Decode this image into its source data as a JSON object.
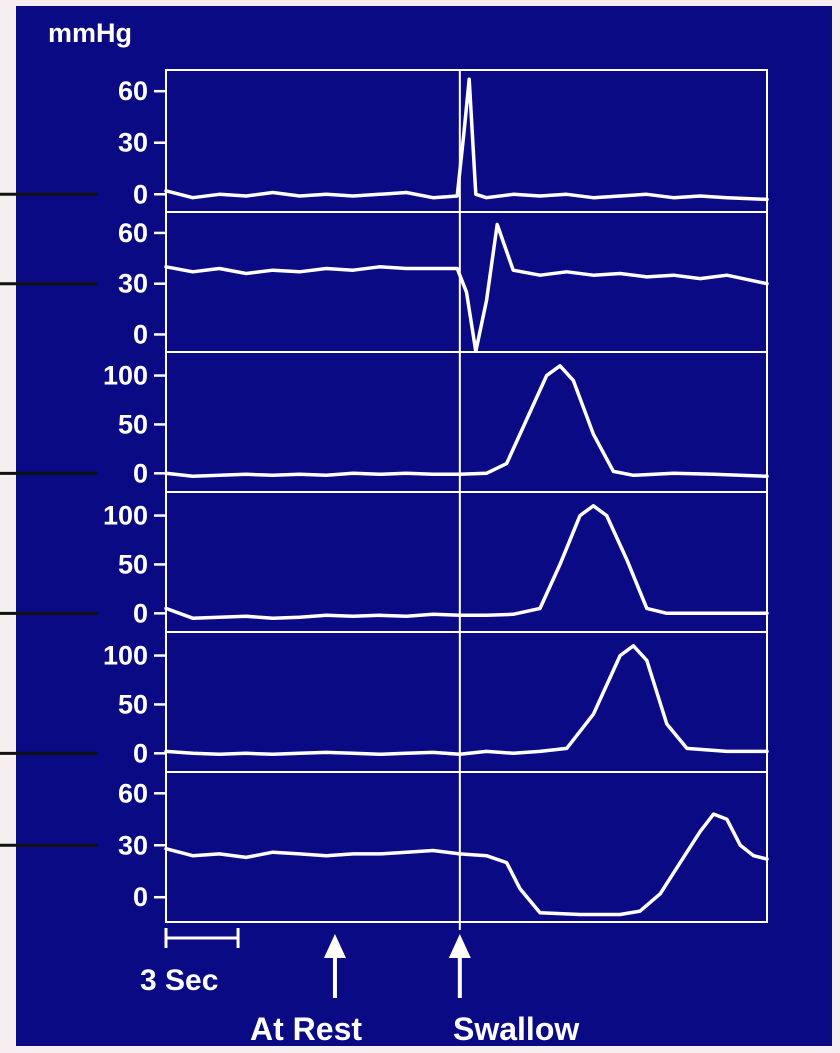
{
  "colors": {
    "background": "#0a0a84",
    "trace": "#ffffff",
    "outer": "#f6eef0",
    "pointer": "#111111"
  },
  "labels": {
    "unit": "mmHg",
    "scale_bar": "3 Sec",
    "at_rest": "At Rest",
    "swallow": "Swallow"
  },
  "chart_data": {
    "type": "line",
    "title": "",
    "xlabel": "",
    "ylabel": "mmHg",
    "x_unit": "sec",
    "xlim": [
      0,
      45
    ],
    "scale_bar_seconds": 3,
    "markers": [
      {
        "label": "At Rest",
        "x": 12.5
      },
      {
        "label": "Swallow",
        "x": 22
      }
    ],
    "grid": false,
    "panels": [
      {
        "yticks": [
          0,
          30,
          60
        ],
        "ylim": [
          -8,
          70
        ],
        "x": [
          0,
          2,
          4,
          6,
          8,
          10,
          12,
          14,
          16,
          18,
          20,
          21.8,
          22.3,
          22.7,
          23.2,
          24,
          26,
          28,
          30,
          32,
          34,
          36,
          38,
          40,
          42,
          45
        ],
        "y": [
          2,
          -2,
          0,
          -1,
          1,
          -1,
          0,
          -1,
          0,
          1,
          -2,
          -1,
          35,
          67,
          0,
          -2,
          0,
          -1,
          0,
          -2,
          -1,
          0,
          -2,
          -1,
          -2,
          -3
        ]
      },
      {
        "yticks": [
          0,
          30,
          60
        ],
        "ylim": [
          -8,
          70
        ],
        "x": [
          0,
          2,
          4,
          6,
          8,
          10,
          12,
          14,
          16,
          18,
          20,
          21.8,
          22.5,
          23.2,
          24,
          24.8,
          26,
          28,
          30,
          32,
          34,
          36,
          38,
          40,
          42,
          45
        ],
        "y": [
          40,
          37,
          39,
          36,
          38,
          37,
          39,
          38,
          40,
          39,
          39,
          39,
          25,
          -10,
          20,
          65,
          38,
          35,
          37,
          35,
          36,
          34,
          35,
          33,
          35,
          30
        ]
      },
      {
        "yticks": [
          0,
          50,
          100
        ],
        "ylim": [
          -15,
          120
        ],
        "x": [
          0,
          2,
          4,
          6,
          8,
          10,
          12,
          14,
          16,
          18,
          20,
          22,
          24,
          25.5,
          27,
          28.5,
          29.5,
          30.5,
          32,
          33.5,
          35,
          38,
          41,
          45
        ],
        "y": [
          0,
          -3,
          -2,
          -1,
          -2,
          -1,
          -2,
          0,
          -1,
          0,
          -1,
          -1,
          0,
          10,
          55,
          100,
          110,
          95,
          40,
          2,
          -2,
          0,
          -1,
          -3
        ]
      },
      {
        "yticks": [
          0,
          50,
          100
        ],
        "ylim": [
          -15,
          120
        ],
        "x": [
          0,
          2,
          4,
          6,
          8,
          10,
          12,
          14,
          16,
          18,
          20,
          22,
          24,
          26,
          28,
          29.5,
          31,
          32,
          33,
          34.5,
          36,
          37.5,
          41,
          45
        ],
        "y": [
          5,
          -5,
          -4,
          -3,
          -5,
          -4,
          -2,
          -3,
          -2,
          -3,
          -1,
          -2,
          -2,
          -1,
          5,
          50,
          100,
          110,
          100,
          55,
          5,
          0,
          0,
          0
        ]
      },
      {
        "yticks": [
          0,
          50,
          100
        ],
        "ylim": [
          -15,
          120
        ],
        "x": [
          0,
          2,
          4,
          6,
          8,
          10,
          12,
          14,
          16,
          18,
          20,
          22,
          24,
          26,
          28,
          30,
          32,
          34,
          35,
          36,
          37.5,
          39,
          42,
          45
        ],
        "y": [
          2,
          0,
          -1,
          0,
          -1,
          0,
          1,
          0,
          -1,
          0,
          1,
          -1,
          2,
          0,
          2,
          5,
          40,
          100,
          110,
          95,
          30,
          5,
          2,
          2
        ]
      },
      {
        "yticks": [
          0,
          30,
          60
        ],
        "ylim": [
          -12,
          70
        ],
        "x": [
          0,
          2,
          4,
          6,
          8,
          10,
          12,
          14,
          16,
          18,
          20,
          22,
          24,
          25.5,
          26.5,
          28,
          31,
          34,
          35.5,
          37,
          38.5,
          40,
          41,
          42,
          43,
          44,
          45
        ],
        "y": [
          28,
          24,
          25,
          23,
          26,
          25,
          24,
          25,
          25,
          26,
          27,
          25,
          24,
          20,
          5,
          -9,
          -10,
          -10,
          -8,
          2,
          20,
          38,
          48,
          45,
          30,
          24,
          22
        ]
      }
    ]
  }
}
